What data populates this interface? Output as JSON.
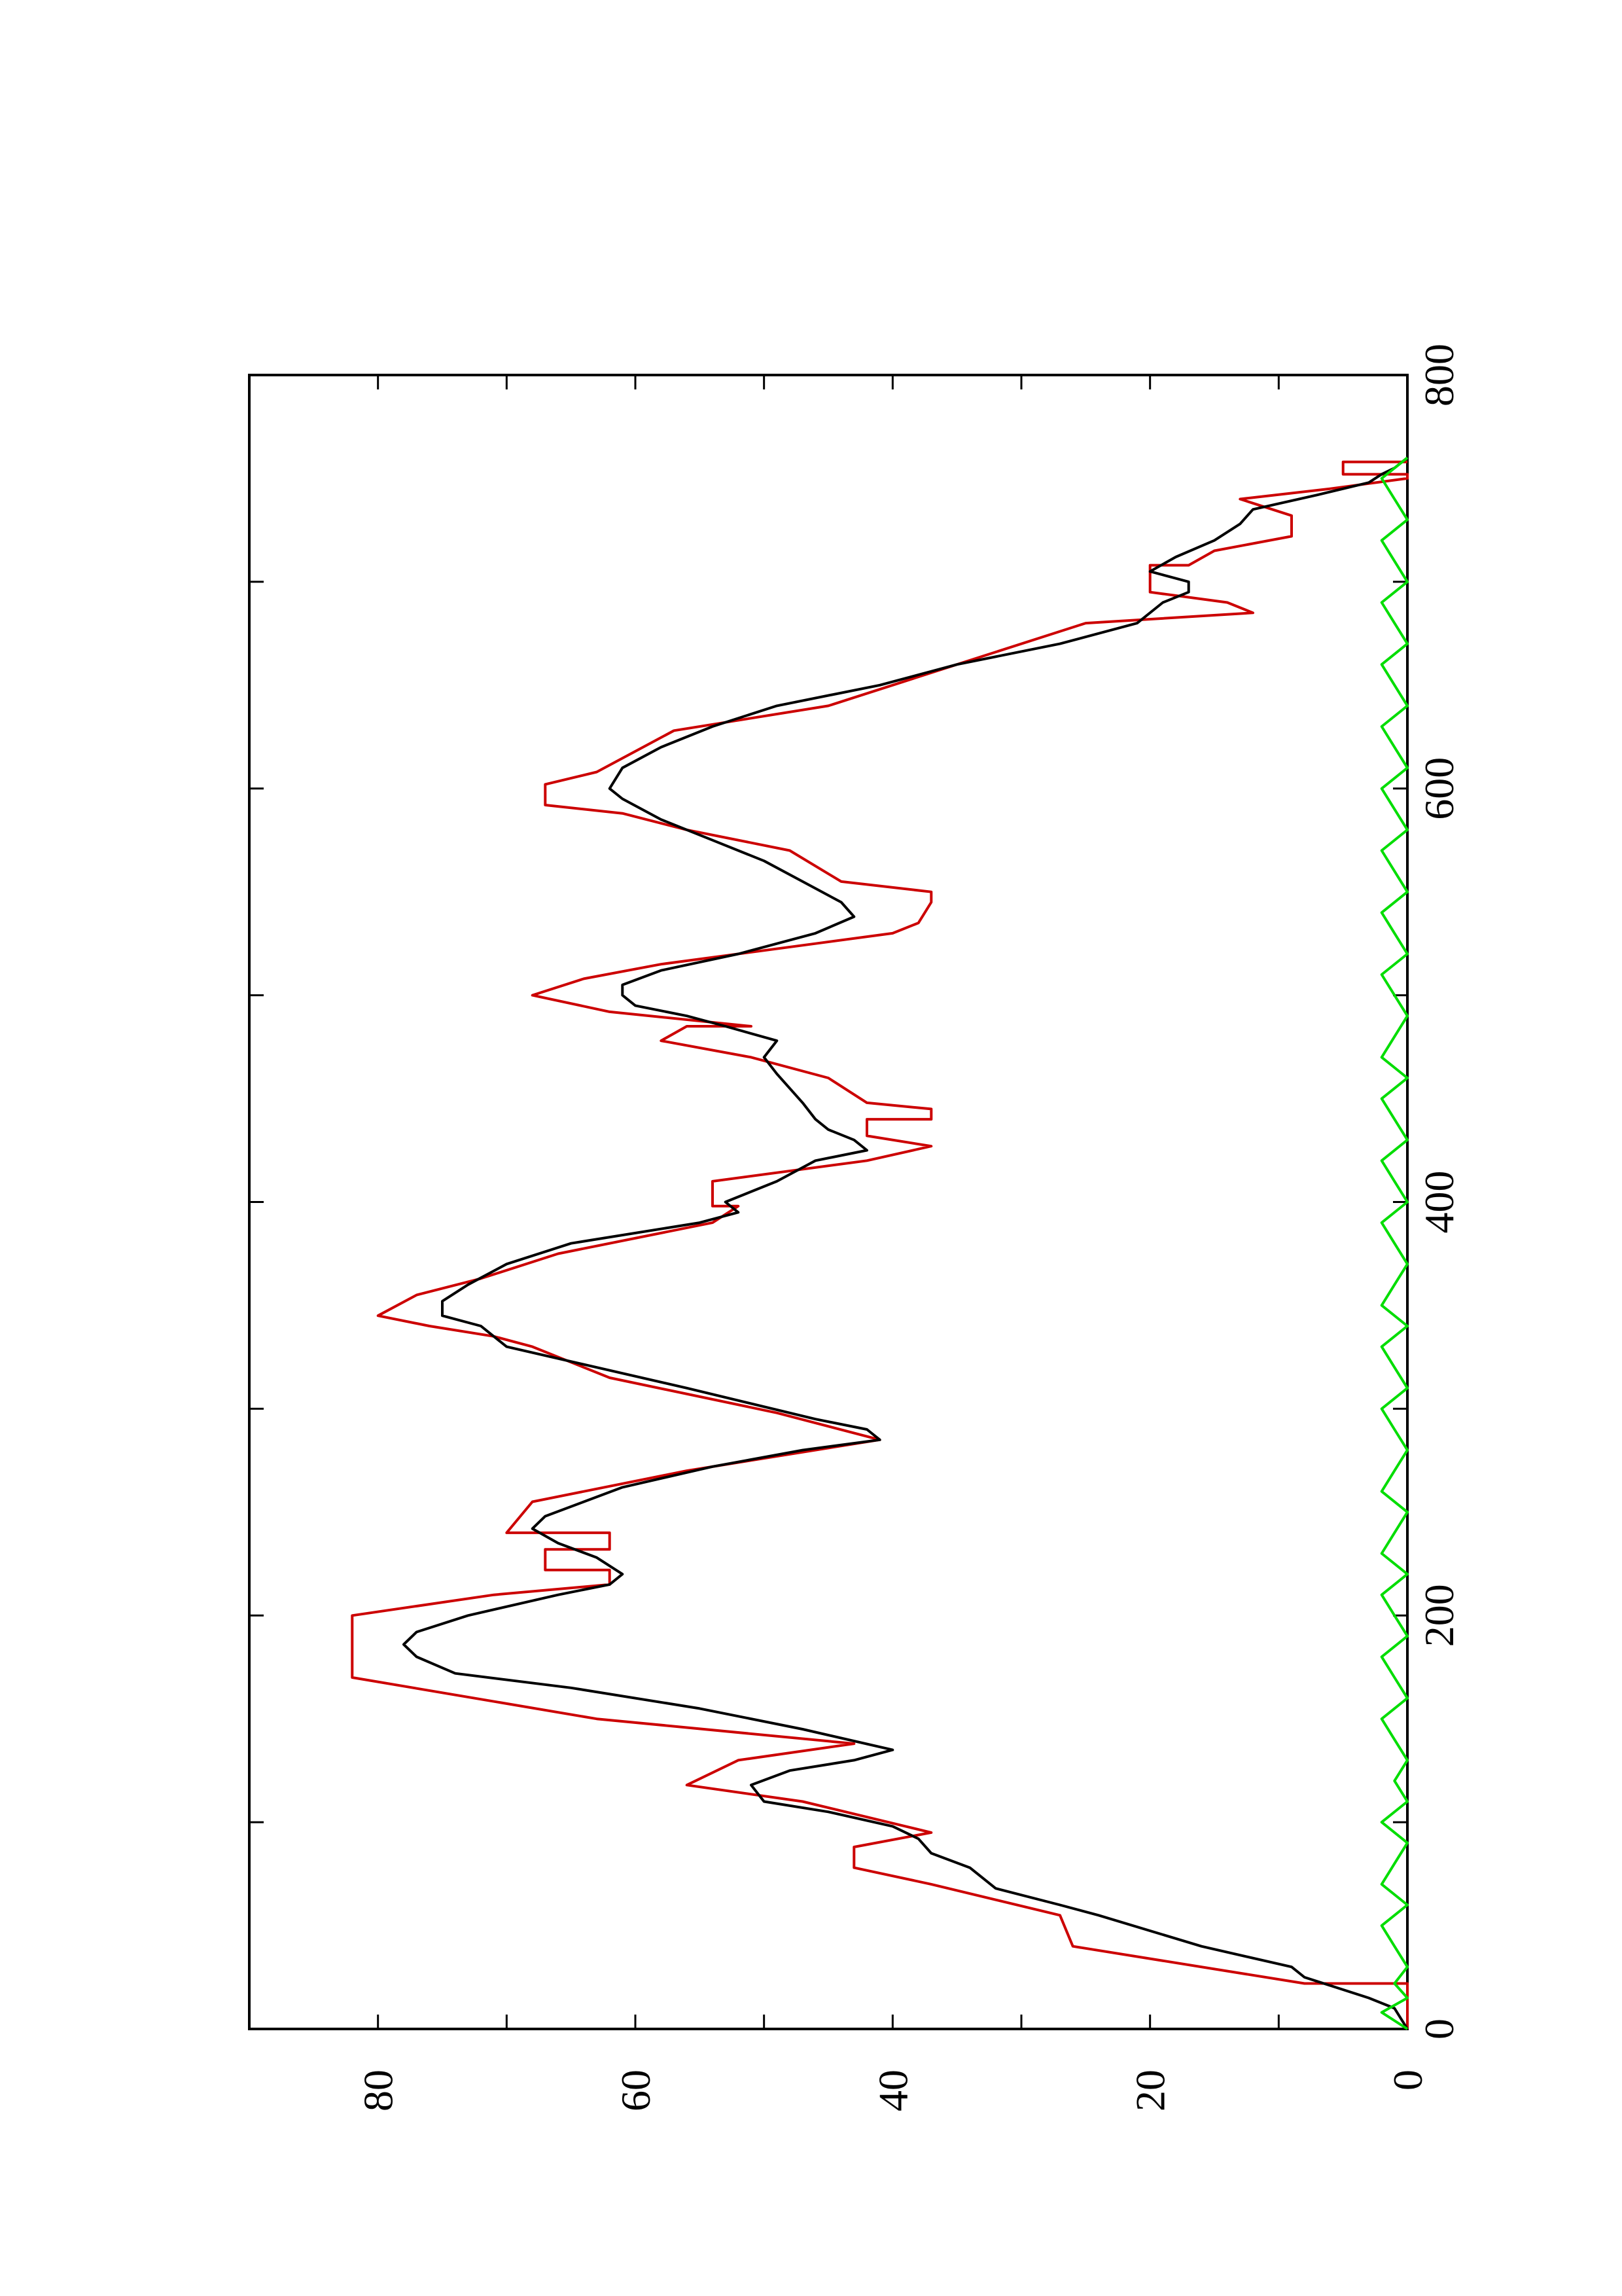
{
  "chart_data": {
    "type": "line",
    "orientation": "rotated 90 degrees counter-clockwise (x axis drawn vertically on the right, y axis drawn horizontally at the bottom)",
    "xlim": [
      0,
      800
    ],
    "ylim": [
      0,
      90
    ],
    "x_ticks": [
      "0",
      "200",
      "400",
      "600",
      "800"
    ],
    "y_ticks": [
      "0",
      "20",
      "40",
      "60",
      "80"
    ],
    "grid": false,
    "series": [
      {
        "color": "#cc0000",
        "points": [
          [
            0,
            0
          ],
          [
            22,
            0
          ],
          [
            22,
            8
          ],
          [
            40,
            26
          ],
          [
            55,
            27
          ],
          [
            70,
            37
          ],
          [
            78,
            43
          ],
          [
            88,
            43
          ],
          [
            95,
            37
          ],
          [
            110,
            47
          ],
          [
            118,
            56
          ],
          [
            130,
            52
          ],
          [
            138,
            43
          ],
          [
            150,
            63
          ],
          [
            170,
            82
          ],
          [
            200,
            82
          ],
          [
            210,
            71
          ],
          [
            215,
            62
          ],
          [
            222,
            62
          ],
          [
            222,
            67
          ],
          [
            232,
            67
          ],
          [
            232,
            62
          ],
          [
            240,
            62
          ],
          [
            240,
            70
          ],
          [
            255,
            68
          ],
          [
            270,
            56
          ],
          [
            285,
            41
          ],
          [
            298,
            49
          ],
          [
            315,
            62
          ],
          [
            330,
            68
          ],
          [
            335,
            71
          ],
          [
            340,
            76
          ],
          [
            345,
            80
          ],
          [
            355,
            77
          ],
          [
            363,
            72
          ],
          [
            375,
            66
          ],
          [
            390,
            54
          ],
          [
            398,
            52
          ],
          [
            398,
            54
          ],
          [
            410,
            54
          ],
          [
            420,
            42
          ],
          [
            427,
            37
          ],
          [
            432,
            42
          ],
          [
            440,
            42
          ],
          [
            440,
            37
          ],
          [
            445,
            37
          ],
          [
            448,
            42
          ],
          [
            460,
            45
          ],
          [
            470,
            51
          ],
          [
            478,
            58
          ],
          [
            485,
            56
          ],
          [
            485,
            51
          ],
          [
            492,
            62
          ],
          [
            500,
            68
          ],
          [
            508,
            64
          ],
          [
            515,
            58
          ],
          [
            525,
            46
          ],
          [
            530,
            40
          ],
          [
            535,
            38
          ],
          [
            545,
            37
          ],
          [
            550,
            37
          ],
          [
            555,
            44
          ],
          [
            570,
            48
          ],
          [
            580,
            56
          ],
          [
            588,
            61
          ],
          [
            592,
            67
          ],
          [
            602,
            67
          ],
          [
            608,
            63
          ],
          [
            628,
            57
          ],
          [
            640,
            45
          ],
          [
            660,
            35
          ],
          [
            680,
            25
          ],
          [
            685,
            12
          ],
          [
            690,
            14
          ],
          [
            695,
            20
          ],
          [
            708,
            20
          ],
          [
            708,
            17
          ],
          [
            715,
            15
          ],
          [
            722,
            9
          ],
          [
            732,
            9
          ],
          [
            740,
            13
          ],
          [
            745,
            6
          ],
          [
            750,
            0
          ],
          [
            752,
            0
          ],
          [
            752,
            5
          ],
          [
            758,
            5
          ],
          [
            758,
            0
          ]
        ]
      },
      {
        "color": "#000000",
        "points": [
          [
            0,
            0
          ],
          [
            10,
            1
          ],
          [
            15,
            3
          ],
          [
            25,
            8
          ],
          [
            30,
            9
          ],
          [
            40,
            16
          ],
          [
            55,
            24
          ],
          [
            60,
            27
          ],
          [
            68,
            32
          ],
          [
            78,
            34
          ],
          [
            85,
            37
          ],
          [
            92,
            38
          ],
          [
            98,
            40
          ],
          [
            105,
            45
          ],
          [
            110,
            50
          ],
          [
            118,
            51
          ],
          [
            125,
            48
          ],
          [
            130,
            43
          ],
          [
            135,
            40
          ],
          [
            145,
            47
          ],
          [
            155,
            55
          ],
          [
            165,
            65
          ],
          [
            172,
            74
          ],
          [
            180,
            77
          ],
          [
            186,
            78
          ],
          [
            192,
            77
          ],
          [
            200,
            73
          ],
          [
            210,
            66
          ],
          [
            215,
            62
          ],
          [
            220,
            61
          ],
          [
            228,
            63
          ],
          [
            235,
            66
          ],
          [
            242,
            68
          ],
          [
            248,
            67
          ],
          [
            255,
            64
          ],
          [
            262,
            61
          ],
          [
            272,
            54
          ],
          [
            280,
            47
          ],
          [
            285,
            41
          ],
          [
            290,
            42
          ],
          [
            295,
            46
          ],
          [
            310,
            56
          ],
          [
            320,
            63
          ],
          [
            330,
            70
          ],
          [
            340,
            72
          ],
          [
            345,
            75
          ],
          [
            352,
            75
          ],
          [
            360,
            73
          ],
          [
            370,
            70
          ],
          [
            380,
            65
          ],
          [
            390,
            55
          ],
          [
            395,
            52
          ],
          [
            400,
            53
          ],
          [
            410,
            49
          ],
          [
            420,
            46
          ],
          [
            425,
            42
          ],
          [
            430,
            43
          ],
          [
            435,
            45
          ],
          [
            440,
            46
          ],
          [
            448,
            47
          ],
          [
            455,
            48
          ],
          [
            462,
            49
          ],
          [
            470,
            50
          ],
          [
            478,
            49
          ],
          [
            485,
            53
          ],
          [
            490,
            56
          ],
          [
            495,
            60
          ],
          [
            500,
            61
          ],
          [
            505,
            61
          ],
          [
            512,
            58
          ],
          [
            520,
            52
          ],
          [
            530,
            46
          ],
          [
            538,
            43
          ],
          [
            545,
            44
          ],
          [
            555,
            47
          ],
          [
            565,
            50
          ],
          [
            575,
            54
          ],
          [
            585,
            58
          ],
          [
            595,
            61
          ],
          [
            600,
            62
          ],
          [
            610,
            61
          ],
          [
            620,
            58
          ],
          [
            630,
            54
          ],
          [
            640,
            49
          ],
          [
            650,
            41
          ],
          [
            660,
            35
          ],
          [
            670,
            27
          ],
          [
            680,
            21
          ],
          [
            690,
            19
          ],
          [
            695,
            17
          ],
          [
            700,
            17
          ],
          [
            705,
            20
          ],
          [
            712,
            18
          ],
          [
            720,
            15
          ],
          [
            728,
            13
          ],
          [
            735,
            12
          ],
          [
            742,
            7
          ],
          [
            748,
            3
          ],
          [
            752,
            2
          ],
          [
            755,
            1
          ],
          [
            760,
            0
          ]
        ]
      },
      {
        "color": "#00dd00",
        "points": [
          [
            0,
            0
          ],
          [
            8,
            2
          ],
          [
            15,
            0
          ],
          [
            22,
            1
          ],
          [
            30,
            0
          ],
          [
            40,
            1
          ],
          [
            50,
            2
          ],
          [
            60,
            0
          ],
          [
            70,
            2
          ],
          [
            80,
            1
          ],
          [
            90,
            0
          ],
          [
            100,
            2
          ],
          [
            110,
            0
          ],
          [
            120,
            1
          ],
          [
            130,
            0
          ],
          [
            140,
            1
          ],
          [
            150,
            2
          ],
          [
            160,
            0
          ],
          [
            170,
            1
          ],
          [
            180,
            2
          ],
          [
            190,
            0
          ],
          [
            200,
            1
          ],
          [
            210,
            2
          ],
          [
            220,
            0
          ],
          [
            230,
            2
          ],
          [
            240,
            1
          ],
          [
            250,
            0
          ],
          [
            260,
            2
          ],
          [
            270,
            1
          ],
          [
            280,
            0
          ],
          [
            290,
            1
          ],
          [
            300,
            2
          ],
          [
            310,
            0
          ],
          [
            320,
            1
          ],
          [
            330,
            2
          ],
          [
            340,
            0
          ],
          [
            350,
            2
          ],
          [
            360,
            1
          ],
          [
            370,
            0
          ],
          [
            380,
            1
          ],
          [
            390,
            2
          ],
          [
            400,
            0
          ],
          [
            410,
            1
          ],
          [
            420,
            2
          ],
          [
            430,
            0
          ],
          [
            440,
            1
          ],
          [
            450,
            2
          ],
          [
            460,
            0
          ],
          [
            470,
            2
          ],
          [
            480,
            1
          ],
          [
            490,
            0
          ],
          [
            500,
            1
          ],
          [
            510,
            2
          ],
          [
            520,
            0
          ],
          [
            530,
            1
          ],
          [
            540,
            2
          ],
          [
            550,
            0
          ],
          [
            560,
            1
          ],
          [
            570,
            2
          ],
          [
            580,
            0
          ],
          [
            590,
            1
          ],
          [
            600,
            2
          ],
          [
            610,
            0
          ],
          [
            620,
            1
          ],
          [
            630,
            2
          ],
          [
            640,
            0
          ],
          [
            650,
            1
          ],
          [
            660,
            2
          ],
          [
            670,
            0
          ],
          [
            680,
            1
          ],
          [
            690,
            2
          ],
          [
            700,
            0
          ],
          [
            710,
            1
          ],
          [
            720,
            2
          ],
          [
            730,
            0
          ],
          [
            740,
            1
          ],
          [
            750,
            2
          ],
          [
            760,
            0
          ]
        ]
      }
    ]
  }
}
